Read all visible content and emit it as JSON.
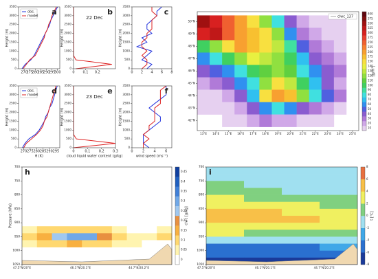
{
  "chart_data": [
    {
      "type": "line",
      "panel": "a",
      "ylabel": "Height (m)",
      "legend": true,
      "xlim": [
        265,
        302
      ],
      "xticks": [
        270,
        275,
        280,
        285,
        290,
        295,
        300
      ],
      "ylim": [
        0,
        3500
      ],
      "yticks": [
        0,
        500,
        1000,
        1500,
        2000,
        2500,
        3000,
        3500
      ],
      "y": [
        0,
        250,
        500,
        750,
        1000,
        1250,
        1500,
        1750,
        2000,
        2250,
        2500,
        2750,
        3000,
        3250,
        3500
      ],
      "series": [
        {
          "name": "obs.",
          "color": "#2233dd",
          "values": [
            268,
            271,
            276,
            279,
            281,
            283,
            285,
            287,
            289,
            291,
            293,
            294,
            296,
            298,
            300
          ]
        },
        {
          "name": "model",
          "color": "#dd2222",
          "values": [
            269,
            272,
            275,
            280,
            282,
            284,
            286,
            288,
            289,
            291,
            292,
            294,
            295,
            297,
            299
          ]
        }
      ]
    },
    {
      "type": "line",
      "panel": "b",
      "ylabel": "Height (m)",
      "annotation": "22 Dec",
      "xlim": [
        0,
        0.35
      ],
      "xticks": [
        0,
        0.1,
        0.2
      ],
      "ylim": [
        0,
        3500
      ],
      "yticks": [
        0,
        500,
        1000,
        1500,
        2000,
        2500,
        3000,
        3500
      ],
      "y": [
        0,
        250,
        500,
        750,
        1000,
        1250,
        1500,
        1750,
        2000,
        2250,
        2500,
        2750,
        3000,
        3250,
        3500
      ],
      "series": [
        {
          "color": "#dd2222",
          "values": [
            0.02,
            0.32,
            0.02,
            0,
            0,
            0,
            0,
            0,
            0,
            0,
            0,
            0,
            0,
            0,
            0
          ]
        }
      ]
    },
    {
      "type": "line",
      "panel": "c",
      "ylabel": "Height (m)",
      "xlim": [
        0,
        8
      ],
      "xticks": [
        0,
        2,
        4,
        6,
        8
      ],
      "ylim": [
        0,
        3500
      ],
      "yticks": [
        0,
        500,
        1000,
        1500,
        2000,
        2500,
        3000,
        3500
      ],
      "y": [
        0,
        250,
        500,
        750,
        1000,
        1250,
        1500,
        1750,
        2000,
        2250,
        2500,
        2750,
        3000,
        3250,
        3500
      ],
      "series": [
        {
          "color": "#2233dd",
          "values": [
            3,
            4,
            2,
            3,
            4,
            1,
            3,
            2,
            4,
            3,
            3,
            4,
            5,
            5,
            6
          ]
        },
        {
          "color": "#dd2222",
          "values": [
            2,
            3,
            3,
            2,
            3,
            2,
            2,
            3,
            3,
            4,
            4,
            4,
            5,
            4,
            4
          ]
        }
      ]
    },
    {
      "type": "line",
      "panel": "d",
      "ylabel": "Height (m)",
      "xlabel": "θ (K)",
      "legend": true,
      "xlim": [
        266,
        298
      ],
      "xticks": [
        270,
        275,
        280,
        285,
        290,
        295
      ],
      "ylim": [
        0,
        3500
      ],
      "yticks": [
        0,
        500,
        1000,
        1500,
        2000,
        2500,
        3000,
        3500
      ],
      "y": [
        0,
        250,
        500,
        750,
        1000,
        1250,
        1500,
        1750,
        2000,
        2250,
        2500,
        2750,
        3000,
        3250,
        3500
      ],
      "series": [
        {
          "name": "obs.",
          "color": "#2233dd",
          "values": [
            269,
            271,
            274,
            279,
            282,
            284,
            286,
            287,
            289,
            290,
            292,
            293,
            294,
            295,
            296
          ]
        },
        {
          "name": "model",
          "color": "#dd2222",
          "values": [
            270,
            272,
            276,
            280,
            283,
            285,
            286,
            288,
            289,
            290,
            291,
            292,
            293,
            294,
            295
          ]
        }
      ]
    },
    {
      "type": "line",
      "panel": "e",
      "ylabel": "Height (m)",
      "xlabel": "cloud liquid water content (g/kg)",
      "annotation": "23 Dec",
      "xlim": [
        0,
        0.3
      ],
      "xticks": [
        0,
        0.1,
        0.2,
        0.3
      ],
      "ylim": [
        0,
        3500
      ],
      "yticks": [
        0,
        500,
        1000,
        1500,
        2000,
        2500,
        3000,
        3500
      ],
      "y": [
        0,
        250,
        500,
        750,
        1000,
        1250,
        1500,
        1750,
        2000,
        2250,
        2500,
        2750,
        3000,
        3250,
        3500
      ],
      "series": [
        {
          "color": "#dd2222",
          "values": [
            0,
            0.3,
            0.02,
            0,
            0,
            0,
            0,
            0,
            0,
            0,
            0,
            0,
            0,
            0,
            0
          ]
        }
      ]
    },
    {
      "type": "line",
      "panel": "f",
      "ylabel": "Height (m)",
      "xlabel": "wind speed (ms⁻¹)",
      "xlim": [
        0,
        7
      ],
      "xticks": [
        0,
        2,
        4,
        6
      ],
      "ylim": [
        0,
        3500
      ],
      "yticks": [
        0,
        500,
        1000,
        1500,
        2000,
        2500,
        3000,
        3500
      ],
      "y": [
        0,
        250,
        500,
        750,
        1000,
        1250,
        1500,
        1750,
        2000,
        2250,
        2500,
        2750,
        3000,
        3250,
        3500
      ],
      "series": [
        {
          "color": "#2233dd",
          "values": [
            3,
            2,
            2,
            2,
            3,
            4,
            5,
            5,
            4,
            3,
            4,
            5,
            6,
            6,
            6
          ]
        },
        {
          "color": "#dd2222",
          "values": [
            2,
            2,
            3,
            2,
            3,
            3,
            4,
            4,
            4,
            4,
            5,
            5,
            5,
            5,
            6
          ]
        }
      ]
    },
    {
      "type": "heatmap",
      "legend_label": "clwc_137",
      "xlim": [
        12.5,
        25.5
      ],
      "xticks": [
        {
          "value": 13,
          "label": "13°E"
        },
        {
          "value": 14,
          "label": "14°E"
        },
        {
          "value": 15,
          "label": "15°E"
        },
        {
          "value": 16,
          "label": "16°E"
        },
        {
          "value": 17,
          "label": "17°E"
        },
        {
          "value": 18,
          "label": "18°E"
        },
        {
          "value": 19,
          "label": "19°E"
        },
        {
          "value": 20,
          "label": "20°E"
        },
        {
          "value": 21,
          "label": "21°E"
        },
        {
          "value": 22,
          "label": "22°E"
        },
        {
          "value": 23,
          "label": "23°E"
        },
        {
          "value": 24,
          "label": "24°E"
        },
        {
          "value": 25,
          "label": "25°E"
        }
      ],
      "ylim": [
        41.2,
        50.8
      ],
      "yticks": [
        {
          "value": 42,
          "label": "42°N"
        },
        {
          "value": 43,
          "label": "43°N"
        },
        {
          "value": 44,
          "label": "44°N"
        },
        {
          "value": 45,
          "label": "45°N"
        },
        {
          "value": 46,
          "label": "46°N"
        },
        {
          "value": 47,
          "label": "47°N"
        },
        {
          "value": 48,
          "label": "48°N"
        },
        {
          "value": 49,
          "label": "49°N"
        },
        {
          "value": 50,
          "label": "50°N"
        }
      ],
      "x": [
        13,
        14,
        15,
        16,
        17,
        18,
        19,
        20,
        21,
        22,
        23,
        24
      ],
      "y": [
        50,
        49,
        48,
        47,
        46,
        45,
        44,
        43,
        42
      ],
      "z": [
        [
          350,
          300,
          250,
          200,
          150,
          120,
          80,
          40,
          20,
          10,
          10,
          10
        ],
        [
          300,
          325,
          250,
          200,
          180,
          150,
          120,
          60,
          30,
          20,
          10,
          10
        ],
        [
          100,
          120,
          150,
          200,
          175,
          150,
          130,
          90,
          50,
          30,
          20,
          10
        ],
        [
          60,
          80,
          100,
          120,
          140,
          130,
          120,
          100,
          70,
          40,
          30,
          20
        ],
        [
          40,
          50,
          60,
          80,
          100,
          110,
          120,
          110,
          80,
          60,
          40,
          30
        ],
        [
          20,
          30,
          40,
          60,
          80,
          120,
          150,
          130,
          100,
          70,
          40,
          20
        ],
        [
          10,
          10,
          20,
          40,
          70,
          150,
          200,
          175,
          120,
          80,
          50,
          30
        ],
        [
          10,
          10,
          10,
          20,
          40,
          60,
          80,
          60,
          40,
          30,
          20,
          10
        ],
        [
          0,
          0,
          10,
          10,
          20,
          30,
          20,
          20,
          10,
          10,
          10,
          0
        ]
      ],
      "colorbar": {
        "label": "[g/m²]",
        "ticks": [
          10,
          20,
          30,
          40,
          50,
          60,
          70,
          80,
          90,
          100,
          110,
          120,
          130,
          140,
          150,
          175,
          200,
          225,
          250,
          275,
          300,
          325,
          350,
          375,
          400
        ],
        "colors": [
          "#e6d0f0",
          "#d0a8e8",
          "#b07ad8",
          "#8a5cd0",
          "#5060e0",
          "#3090f0",
          "#30c0f0",
          "#40e0e0",
          "#40e0a0",
          "#40d060",
          "#60d040",
          "#90e040",
          "#c0e840",
          "#e8f040",
          "#f8e040",
          "#f8c030",
          "#f8a030",
          "#f88030",
          "#f06030",
          "#e84030",
          "#d82020",
          "#c01818",
          "#a01010",
          "#801010",
          "#600810"
        ]
      }
    },
    {
      "type": "heatmap",
      "panel": "h",
      "ylabel": "Pressure (hPa)",
      "xlim": [
        0,
        1
      ],
      "xticks": [
        {
          "value": 0,
          "label": "47.5°N/20°E"
        },
        {
          "value": 0.39,
          "label": "46.1°N/20.1°E"
        },
        {
          "value": 0.78,
          "label": "44.7°N/20.2°E"
        }
      ],
      "ylim": [
        1050,
        700
      ],
      "yticks": [
        700,
        750,
        800,
        850,
        900,
        950,
        1000,
        1050
      ],
      "x": [
        0.05,
        0.15,
        0.25,
        0.35,
        0.45,
        0.55,
        0.65,
        0.75,
        0.85,
        0.95
      ],
      "y": [
        925,
        950,
        975
      ],
      "z": [
        [
          0.05,
          0.1,
          0.1,
          0.1,
          0.1,
          0.1,
          0.05,
          0,
          0,
          0.05
        ],
        [
          0.1,
          0.15,
          0.25,
          0.3,
          0.3,
          0.2,
          0.1,
          0.05,
          0.05,
          0.1
        ],
        [
          0.05,
          0.1,
          0.1,
          0.15,
          0.1,
          0.1,
          0.05,
          0.05,
          0,
          0
        ]
      ],
      "colorbar": {
        "label": "clwc [g/kg]",
        "ticks": [
          0,
          0.05,
          0.1,
          0.15,
          0.2,
          0.25,
          0.3,
          0.35,
          0.4,
          0.45
        ],
        "colors": [
          "#ffffff",
          "#fff4b0",
          "#ffd870",
          "#f8b040",
          "#e89040",
          "#a0c8f0",
          "#70a8e8",
          "#4080d8",
          "#2060c0",
          "#1040a0"
        ]
      }
    },
    {
      "type": "heatmap",
      "panel": "i",
      "xlim": [
        0,
        1
      ],
      "xticks": [
        {
          "value": 0,
          "label": "47.5°N/20°E"
        },
        {
          "value": 0.39,
          "label": "46.1°N/20.1°E"
        },
        {
          "value": 0.78,
          "label": "44.7°N/20.2°E"
        }
      ],
      "ylim": [
        1050,
        700
      ],
      "yticks": [
        700,
        750,
        800,
        850,
        900,
        950,
        1000,
        1050
      ],
      "x": [
        0.125,
        0.375,
        0.625,
        0.875
      ],
      "y": [
        712.5,
        737.5,
        762.5,
        787.5,
        812.5,
        837.5,
        862.5,
        887.5,
        912.5,
        937.5,
        962.5,
        987.5,
        1012.5,
        1037.5
      ],
      "z": [
        [
          -2,
          -2,
          -2,
          -1
        ],
        [
          -1,
          -2,
          -2,
          -2
        ],
        [
          0,
          -1,
          -2,
          -2
        ],
        [
          1,
          0,
          -1,
          -1
        ],
        [
          2,
          1,
          0,
          0
        ],
        [
          3,
          3,
          2,
          1
        ],
        [
          5,
          4,
          3,
          2
        ],
        [
          4,
          4,
          4,
          2
        ],
        [
          3,
          3,
          2,
          2
        ],
        [
          2,
          1,
          1,
          1
        ],
        [
          -1,
          -2,
          -2,
          -2
        ],
        [
          -5,
          -5,
          -5,
          -4
        ],
        [
          -6,
          -6,
          -6,
          -5
        ],
        [
          -7,
          -7,
          -7,
          -7
        ]
      ],
      "colorbar": {
        "label": "t [°C]",
        "ticks": [
          -8,
          -6,
          -4,
          -2,
          0,
          2,
          4,
          6,
          8
        ],
        "colors": [
          "#1a3a9a",
          "#2a70d0",
          "#40a8e8",
          "#a0e0f0",
          "#80d080",
          "#f0f060",
          "#f8c048",
          "#e87040"
        ]
      }
    }
  ]
}
